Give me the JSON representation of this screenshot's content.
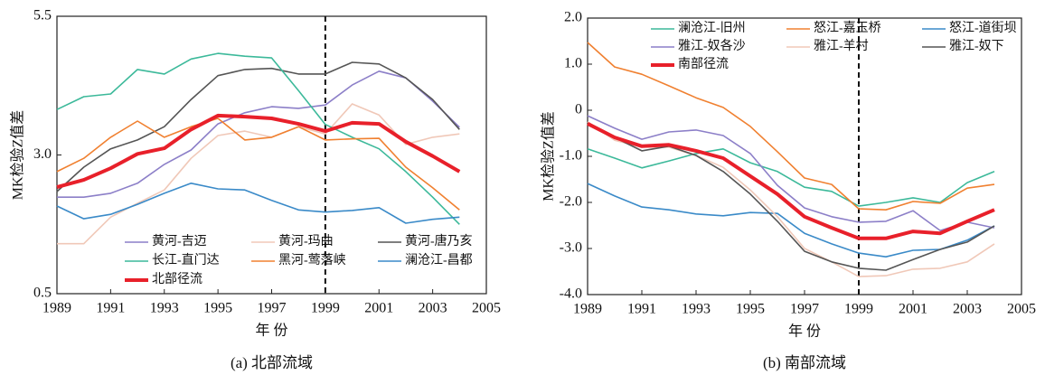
{
  "chart_data": [
    {
      "type": "line",
      "caption": "(a) 北部流域",
      "xlabel": "年 份",
      "ylabel": "MK检验Z值差",
      "x": [
        1989,
        1990,
        1991,
        1992,
        1993,
        1994,
        1995,
        1996,
        1997,
        1998,
        1999,
        2000,
        2001,
        2002,
        2003,
        2004
      ],
      "xlim": [
        1989,
        2005
      ],
      "xticks": [
        1989,
        1991,
        1993,
        1995,
        1997,
        1999,
        2001,
        2003,
        2005
      ],
      "ylim": [
        0.5,
        5.5
      ],
      "yticks": [
        0.5,
        {
          "value": 3,
          "label": "3.0"
        },
        5.5
      ],
      "vline": 1999,
      "legend": "lower left",
      "series": [
        {
          "name": "黄河-吉迈",
          "color": "#8c7fc8",
          "values": [
            2.24,
            2.24,
            2.31,
            2.49,
            2.83,
            3.09,
            3.56,
            3.76,
            3.87,
            3.84,
            3.9,
            4.26,
            4.51,
            4.39,
            3.97,
            3.5
          ]
        },
        {
          "name": "黄河-玛曲",
          "color": "#f0c8b8",
          "values": [
            1.4,
            1.4,
            1.88,
            2.13,
            2.37,
            2.94,
            3.35,
            3.43,
            3.32,
            3.51,
            3.38,
            3.92,
            3.72,
            3.19,
            3.32,
            3.38
          ]
        },
        {
          "name": "黄河-唐乃亥",
          "color": "#555555",
          "values": [
            2.34,
            2.78,
            3.11,
            3.27,
            3.51,
            4.0,
            4.43,
            4.54,
            4.56,
            4.46,
            4.46,
            4.67,
            4.64,
            4.39,
            4.0,
            3.46
          ]
        },
        {
          "name": "长江-直门达",
          "color": "#3cb99a",
          "values": [
            3.82,
            4.05,
            4.1,
            4.54,
            4.46,
            4.73,
            4.83,
            4.78,
            4.75,
            4.16,
            3.55,
            3.32,
            3.11,
            2.7,
            2.24,
            1.75
          ]
        },
        {
          "name": "黑河-莺落峡",
          "color": "#f08030",
          "values": [
            2.7,
            2.94,
            3.32,
            3.61,
            3.32,
            3.51,
            3.66,
            3.27,
            3.32,
            3.51,
            3.27,
            3.29,
            3.3,
            2.78,
            2.41,
            2.01
          ]
        },
        {
          "name": "澜沧江-昌都",
          "color": "#3a8ac8",
          "values": [
            2.08,
            1.85,
            1.93,
            2.11,
            2.31,
            2.49,
            2.39,
            2.37,
            2.18,
            2.01,
            1.97,
            2.0,
            2.05,
            1.77,
            1.84,
            1.88
          ]
        },
        {
          "name": "北部径流",
          "color": "#e8202a",
          "width": 4,
          "values": [
            2.42,
            2.55,
            2.76,
            3.02,
            3.12,
            3.46,
            3.71,
            3.69,
            3.66,
            3.56,
            3.43,
            3.58,
            3.56,
            3.24,
            2.98,
            2.7
          ]
        }
      ]
    },
    {
      "type": "line",
      "caption": "(b) 南部流域",
      "xlabel": "年 份",
      "ylabel": "MK检验Z值差",
      "x": [
        1989,
        1990,
        1991,
        1992,
        1993,
        1994,
        1995,
        1996,
        1997,
        1998,
        1999,
        2000,
        2001,
        2002,
        2003,
        2004
      ],
      "xlim": [
        1989,
        2005
      ],
      "xticks": [
        1989,
        1991,
        1993,
        1995,
        1997,
        1999,
        2001,
        2003,
        2005
      ],
      "ylim": [
        -4,
        2
      ],
      "yticks": [
        {
          "value": 2,
          "label": "2.0"
        },
        {
          "value": 1,
          "label": "1.0"
        },
        0,
        {
          "value": -1,
          "label": "-1.0"
        },
        {
          "value": -2,
          "label": "-2.0"
        },
        {
          "value": -3,
          "label": "-3.0"
        },
        {
          "value": -4,
          "label": "-4.0"
        }
      ],
      "vline": 1999,
      "legend": "upper left",
      "series": [
        {
          "name": "澜沧江-旧州",
          "color": "#3cb99a",
          "values": [
            -0.84,
            -1.04,
            -1.25,
            -1.1,
            -0.94,
            -0.84,
            -1.14,
            -1.33,
            -1.67,
            -1.76,
            -2.08,
            -2.0,
            -1.9,
            -2.0,
            -1.57,
            -1.33
          ]
        },
        {
          "name": "怒江-嘉玉桥",
          "color": "#f08030",
          "values": [
            1.47,
            0.94,
            0.78,
            0.53,
            0.27,
            0.06,
            -0.35,
            -0.9,
            -1.47,
            -1.61,
            -2.14,
            -2.16,
            -1.98,
            -2.02,
            -1.69,
            -1.61
          ]
        },
        {
          "name": "怒江-道街坝",
          "color": "#3a8ac8",
          "values": [
            -1.59,
            -1.86,
            -2.1,
            -2.16,
            -2.25,
            -2.29,
            -2.22,
            -2.24,
            -2.67,
            -2.9,
            -3.1,
            -3.18,
            -3.04,
            -3.02,
            -2.82,
            -2.51
          ]
        },
        {
          "name": "雅江-奴各沙",
          "color": "#8c7fc8",
          "values": [
            -0.12,
            -0.39,
            -0.63,
            -0.47,
            -0.43,
            -0.55,
            -0.94,
            -1.63,
            -2.12,
            -2.31,
            -2.43,
            -2.41,
            -2.18,
            -2.61,
            -2.43,
            -2.55
          ]
        },
        {
          "name": "雅江-羊村",
          "color": "#f0c8b8",
          "values": [
            -0.25,
            -0.65,
            -0.8,
            -0.8,
            -0.98,
            -1.24,
            -1.73,
            -2.31,
            -3.0,
            -3.29,
            -3.61,
            -3.59,
            -3.45,
            -3.43,
            -3.29,
            -2.9
          ]
        },
        {
          "name": "雅江-奴下",
          "color": "#555555",
          "values": [
            -0.31,
            -0.59,
            -0.88,
            -0.78,
            -0.98,
            -1.33,
            -1.82,
            -2.41,
            -3.06,
            -3.29,
            -3.43,
            -3.47,
            -3.24,
            -3.02,
            -2.86,
            -2.51
          ]
        },
        {
          "name": "南部径流",
          "color": "#e8202a",
          "width": 4,
          "values": [
            -0.29,
            -0.59,
            -0.78,
            -0.75,
            -0.88,
            -1.04,
            -1.43,
            -1.82,
            -2.31,
            -2.55,
            -2.78,
            -2.78,
            -2.63,
            -2.67,
            -2.41,
            -2.16
          ]
        }
      ]
    }
  ]
}
